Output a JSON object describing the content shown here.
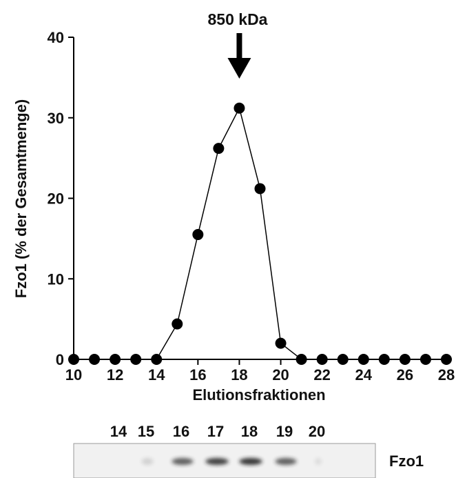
{
  "chart_data": {
    "type": "line",
    "annotation": "850 kDa",
    "annotation_x": 18,
    "xlabel": "Elutionsfraktionen",
    "ylabel": "Fzo1 (% der Gesamtmenge)",
    "x": [
      10,
      11,
      12,
      13,
      14,
      15,
      16,
      17,
      18,
      19,
      20,
      21,
      22,
      23,
      24,
      25,
      26,
      27,
      28
    ],
    "series": [
      {
        "color": "#000000",
        "values": [
          0,
          0,
          0,
          0,
          0,
          4.4,
          15.5,
          26.2,
          31.2,
          21.2,
          2.0,
          0,
          0,
          0,
          0,
          0,
          0,
          0,
          0
        ]
      }
    ],
    "xlim": [
      10,
      28
    ],
    "xticks": [
      10,
      12,
      14,
      16,
      18,
      20,
      22,
      24,
      26,
      28
    ],
    "ylim": [
      0,
      40
    ],
    "yticks": [
      0,
      10,
      20,
      30,
      40
    ]
  },
  "blot": {
    "lanes": [
      "14",
      "15",
      "16",
      "17",
      "18",
      "19",
      "20"
    ],
    "label": "Fzo1"
  }
}
